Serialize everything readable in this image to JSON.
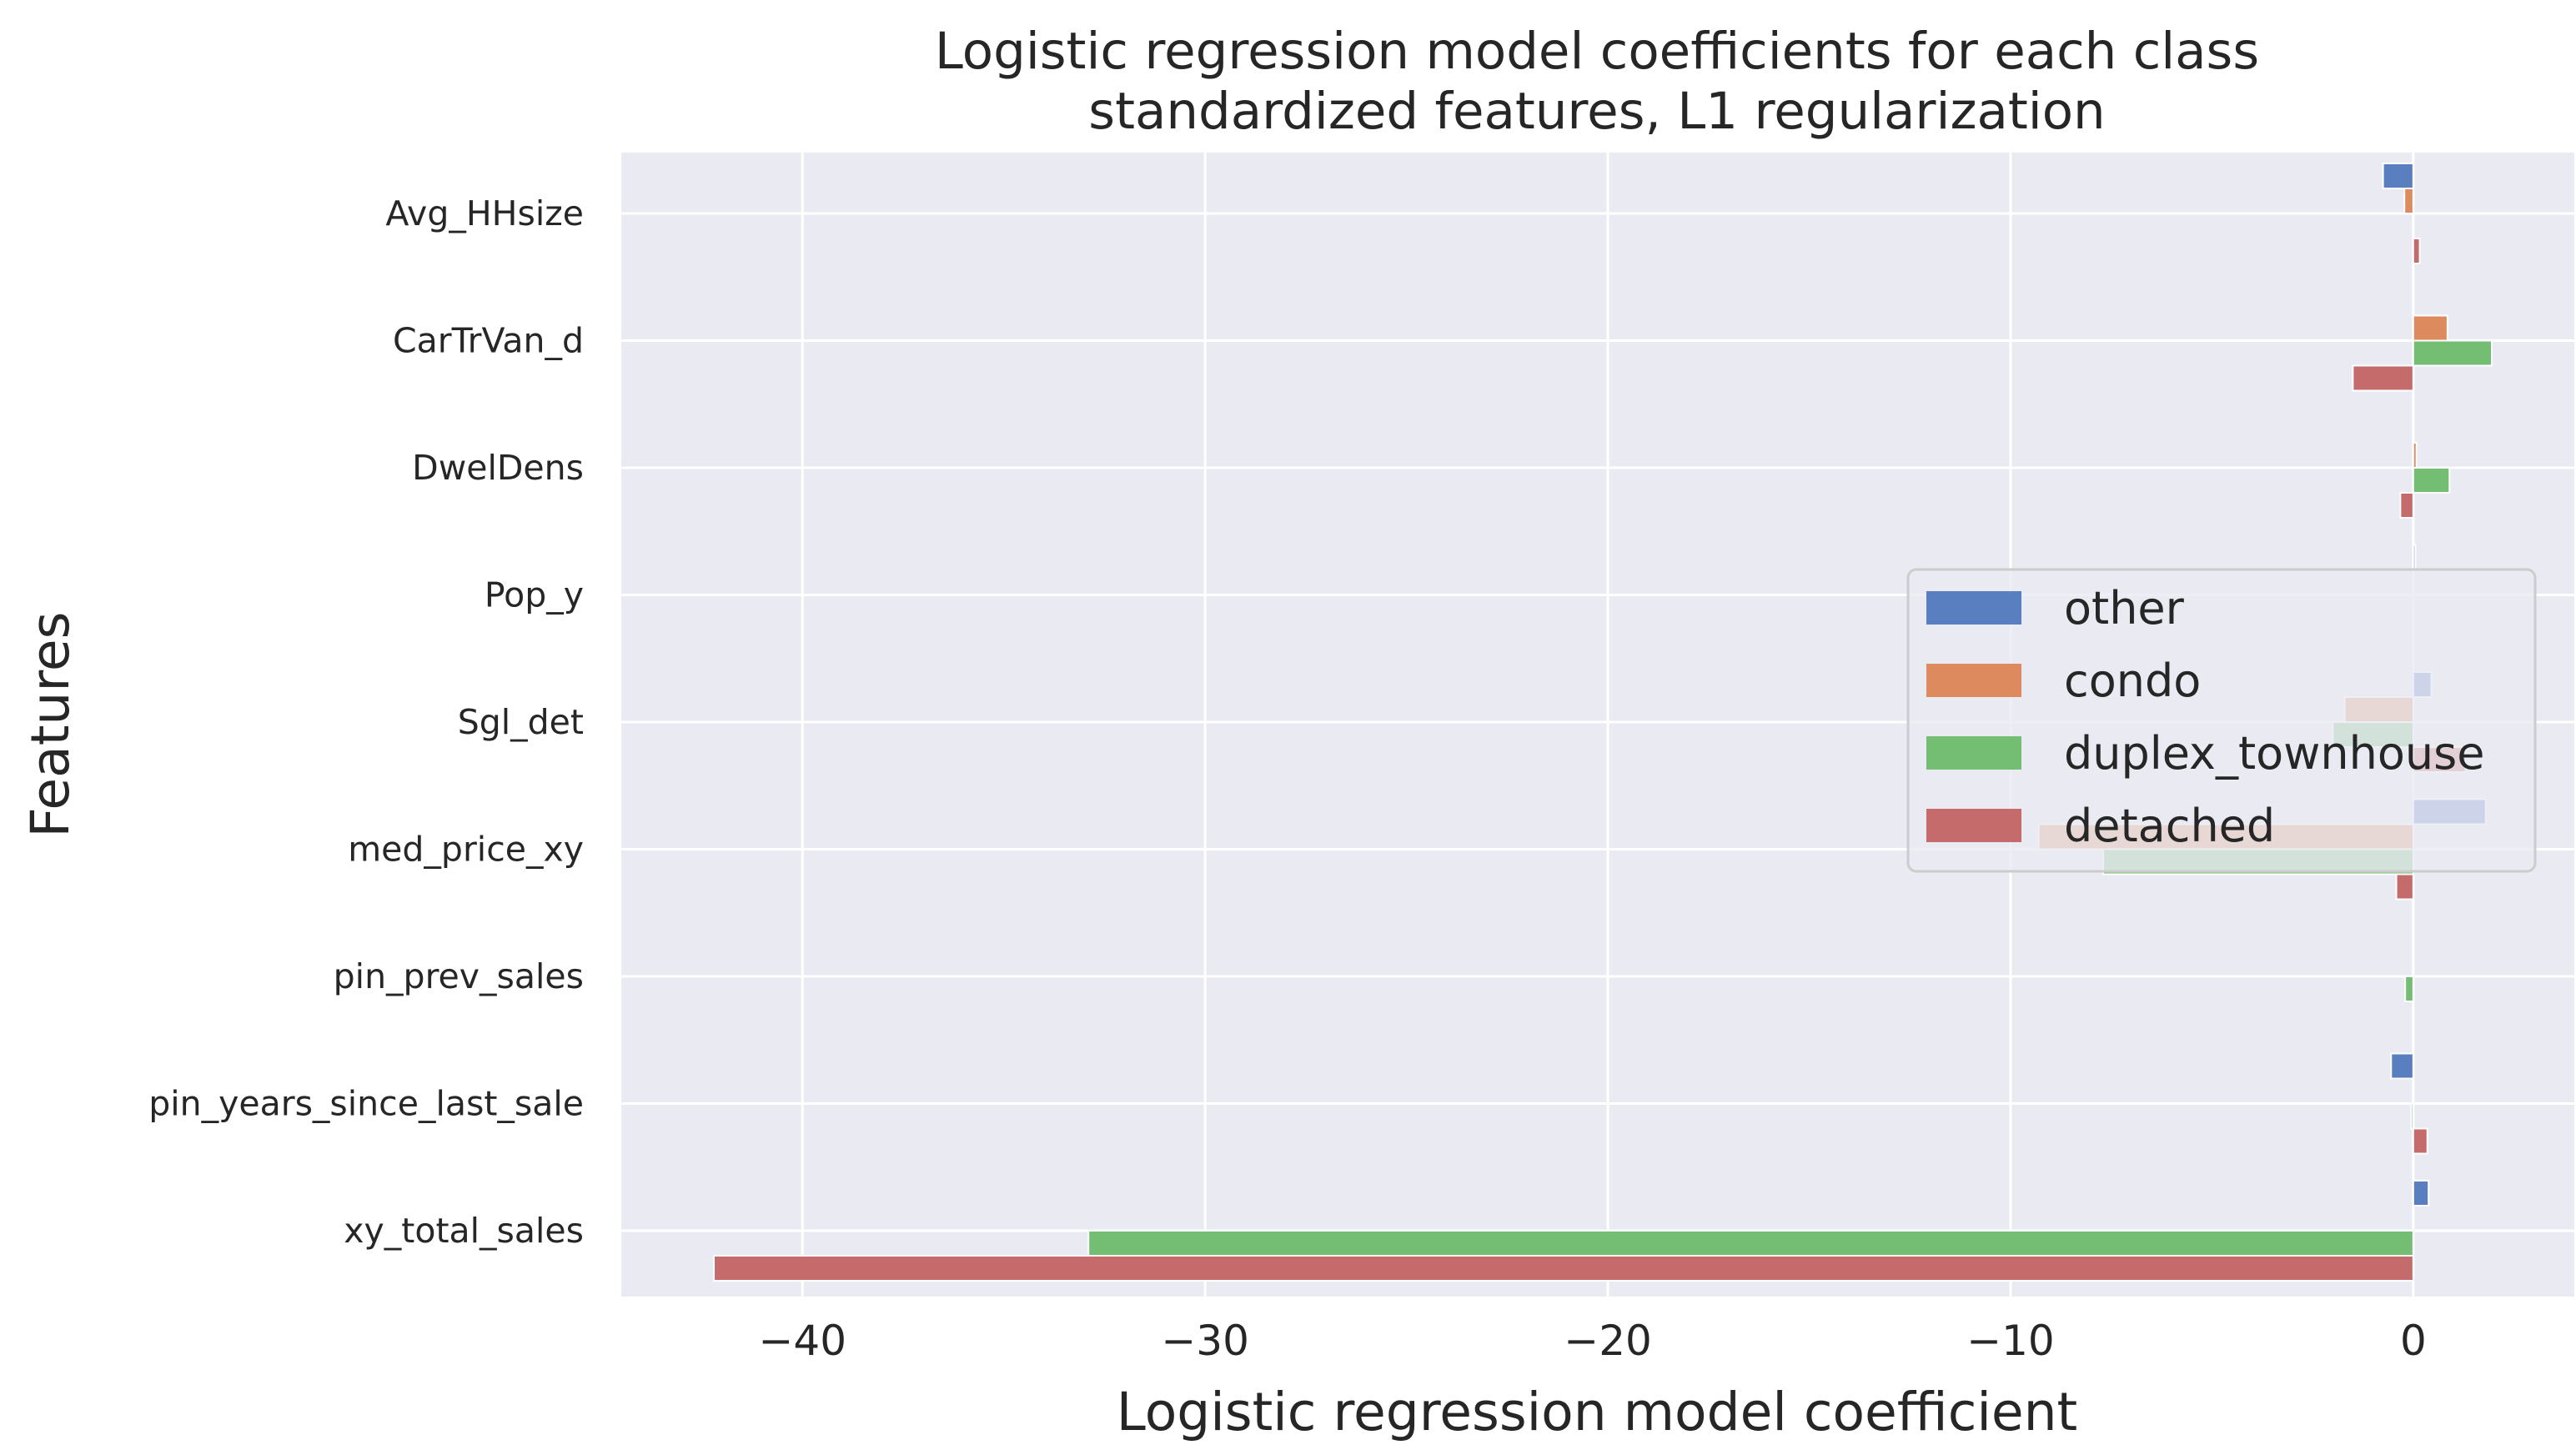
{
  "chart_data": {
    "type": "bar",
    "orientation": "horizontal",
    "title": "Logistic regression model coefficients for each class\nstandardized features, L1 regularization",
    "xlabel": "Logistic regression model coefficient",
    "ylabel": "Features",
    "categories": [
      "Avg_HHsize",
      "CarTrVan_d",
      "DwelDens",
      "Pop_y",
      "Sgl_det",
      "med_price_xy",
      "pin_prev_sales",
      "pin_years_since_last_sale",
      "xy_total_sales"
    ],
    "xlim": [
      -44.5,
      4.0
    ],
    "xticks": [
      -40,
      -30,
      -20,
      -10,
      0
    ],
    "xtick_labels": [
      "−40",
      "−30",
      "−20",
      "−10",
      "0"
    ],
    "series": [
      {
        "name": "other",
        "color": "#5a7fc0",
        "values": [
          -0.75,
          0.0,
          0.0,
          0.05,
          0.45,
          1.8,
          0.0,
          -0.55,
          0.38
        ]
      },
      {
        "name": "condo",
        "color": "#dc8a5e",
        "values": [
          -0.22,
          0.85,
          0.08,
          0.0,
          -1.7,
          -9.3,
          0.0,
          0.0,
          0.0
        ]
      },
      {
        "name": "duplex_townhouse",
        "color": "#73be73",
        "values": [
          0.0,
          1.95,
          0.9,
          0.0,
          -2.0,
          -7.7,
          -0.2,
          -0.05,
          -32.9
        ]
      },
      {
        "name": "detached",
        "color": "#c56b6b",
        "values": [
          0.16,
          -1.5,
          -0.32,
          0.0,
          1.3,
          -0.42,
          0.0,
          0.35,
          -42.2
        ]
      }
    ],
    "grid": true,
    "legend_position": "center-right",
    "background": "#eaeaf2"
  }
}
